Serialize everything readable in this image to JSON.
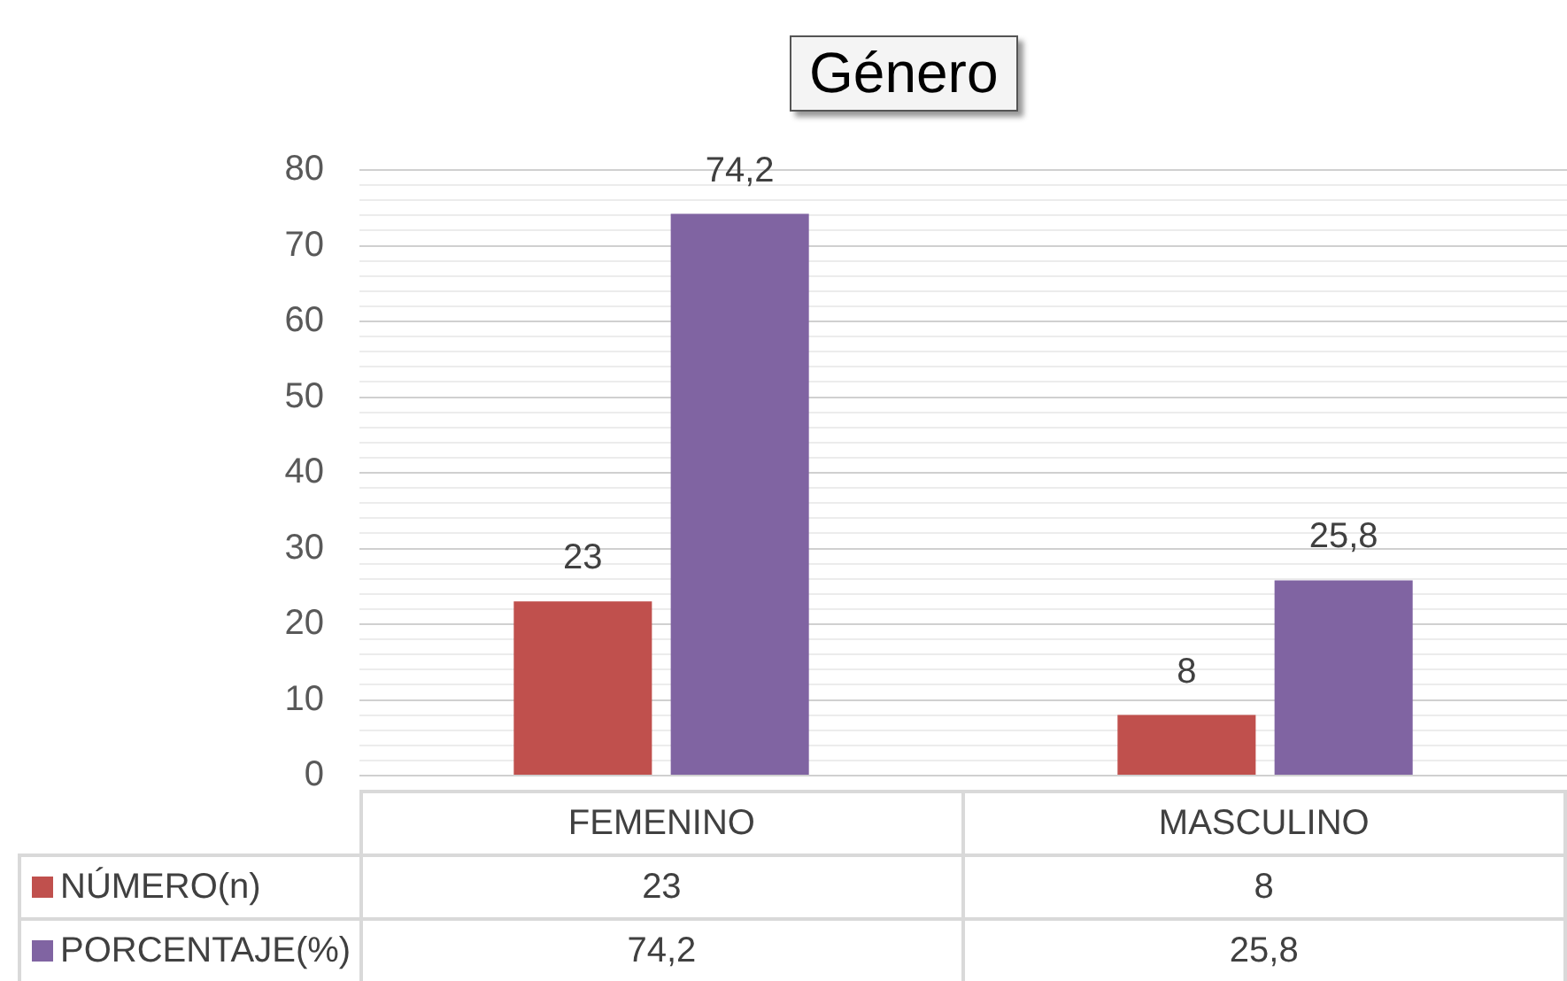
{
  "chart_data": {
    "type": "bar",
    "title": "Género",
    "categories": [
      "FEMENINO",
      "MASCULINO"
    ],
    "series": [
      {
        "name": "NÚMERO(n)",
        "color": "#c0504d",
        "values": [
          23,
          8
        ],
        "value_labels": [
          "23",
          "8"
        ]
      },
      {
        "name": "PORCENTAJE(%)",
        "color": "#8064a2",
        "values": [
          74.2,
          25.8
        ],
        "value_labels": [
          "74,2",
          "25,8"
        ]
      }
    ],
    "ylim": [
      0,
      80
    ],
    "yticks": [
      0,
      {
        "value": 2,
        "label": null
      },
      {
        "value": 4,
        "label": null
      },
      {
        "value": 6,
        "label": null
      },
      {
        "value": 8,
        "label": null
      },
      10,
      {
        "value": 12,
        "label": null
      },
      {
        "value": 14,
        "label": null
      },
      {
        "value": 16,
        "label": null
      },
      {
        "value": 18,
        "label": null
      },
      20,
      {
        "value": 22,
        "label": null
      },
      {
        "value": 24,
        "label": null
      },
      {
        "value": 26,
        "label": null
      },
      {
        "value": 28,
        "label": null
      },
      30,
      {
        "value": 32,
        "label": null
      },
      {
        "value": 34,
        "label": null
      },
      {
        "value": 36,
        "label": null
      },
      {
        "value": 38,
        "label": null
      },
      40,
      {
        "value": 42,
        "label": null
      },
      {
        "value": 44,
        "label": null
      },
      {
        "value": 46,
        "label": null
      },
      {
        "value": 48,
        "label": null
      },
      50,
      {
        "value": 52,
        "label": null
      },
      {
        "value": 54,
        "label": null
      },
      {
        "value": 56,
        "label": null
      },
      {
        "value": 58,
        "label": null
      },
      60,
      {
        "value": 62,
        "label": null
      },
      {
        "value": 64,
        "label": null
      },
      {
        "value": 66,
        "label": null
      },
      {
        "value": 68,
        "label": null
      },
      70,
      {
        "value": 72,
        "label": null
      },
      {
        "value": 74,
        "label": null
      },
      {
        "value": 76,
        "label": null
      },
      {
        "value": 78,
        "label": null
      },
      80
    ],
    "grid": "y",
    "legend": "bottom"
  }
}
